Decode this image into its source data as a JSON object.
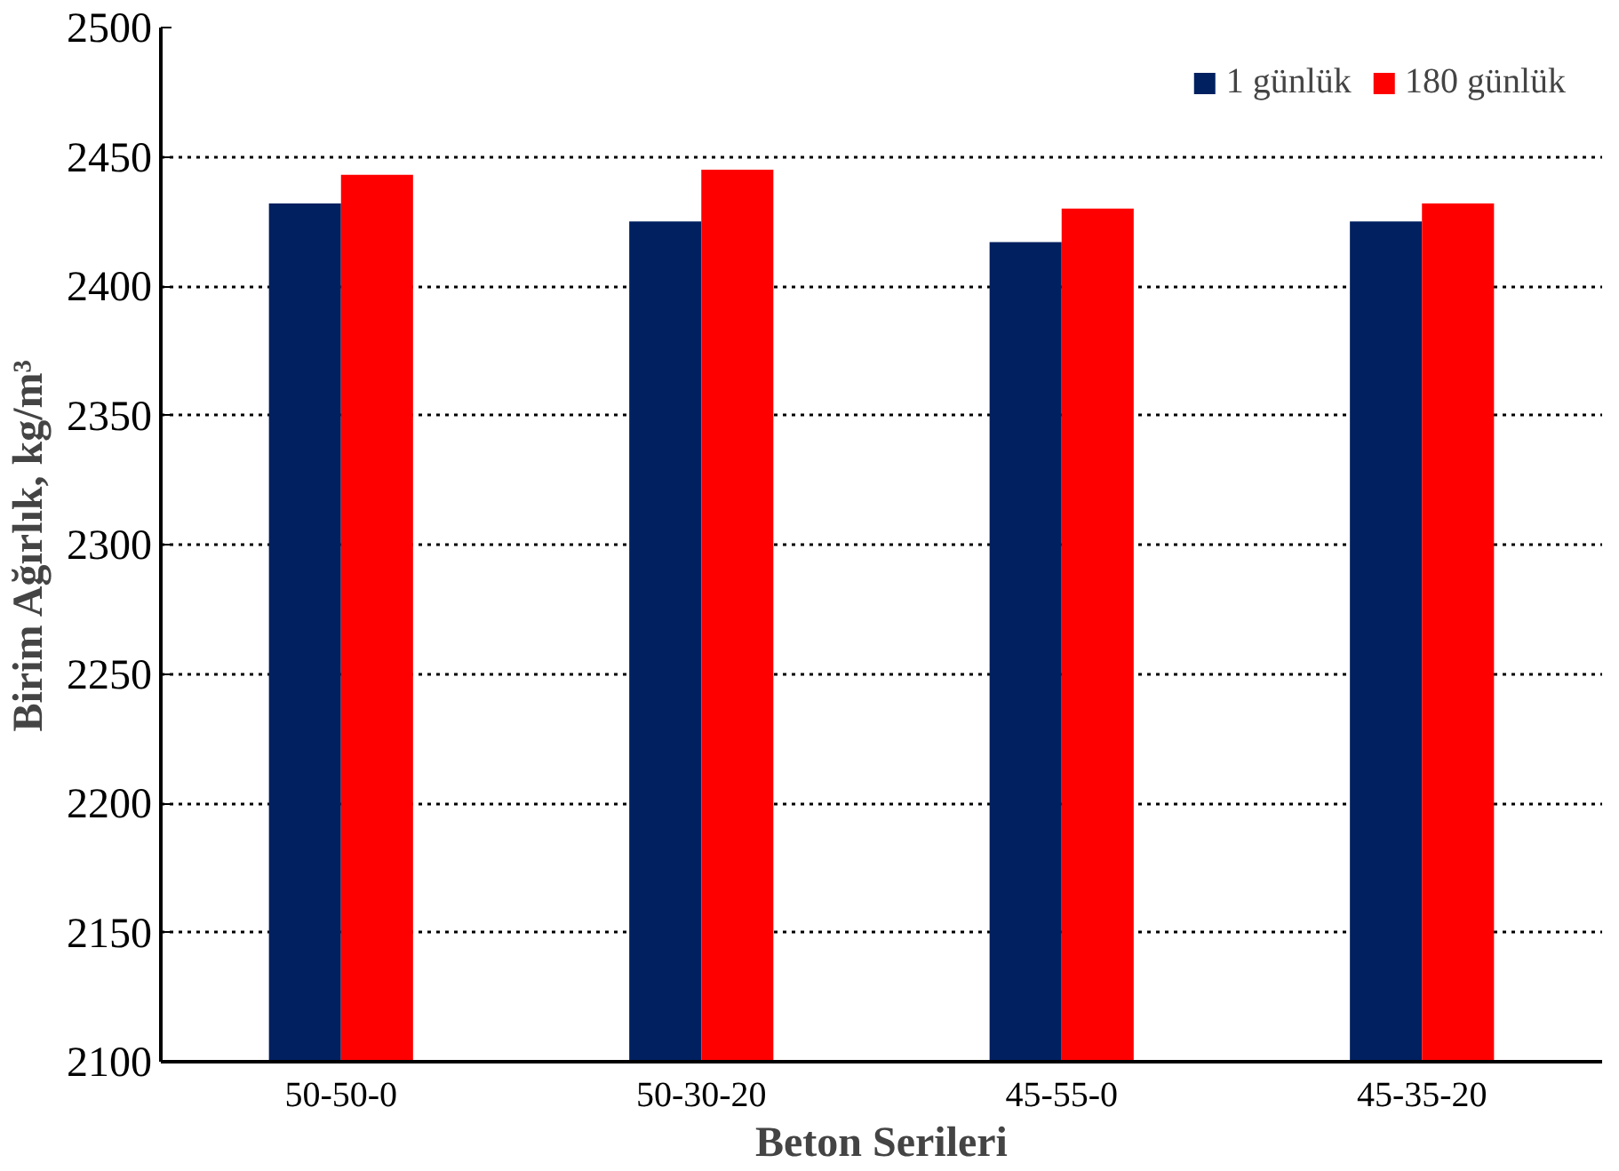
{
  "chart_data": {
    "type": "bar",
    "xlabel": "Beton Serileri",
    "ylabel": "Birim Ağırlık, kg/m³",
    "categories": [
      "50-50-0",
      "50-30-20",
      "45-55-0",
      "45-35-20"
    ],
    "series": [
      {
        "name": "1 günlük",
        "color": "#002060",
        "values": [
          2432,
          2425,
          2417,
          2425
        ]
      },
      {
        "name": "180 günlük",
        "color": "#ff0000",
        "values": [
          2443,
          2445,
          2430,
          2432
        ]
      }
    ],
    "ylim": [
      2100,
      2500
    ],
    "yticks": [
      2100,
      2150,
      2200,
      2250,
      2300,
      2350,
      2400,
      2450,
      2500
    ],
    "grid": "y",
    "legend": "top right"
  }
}
